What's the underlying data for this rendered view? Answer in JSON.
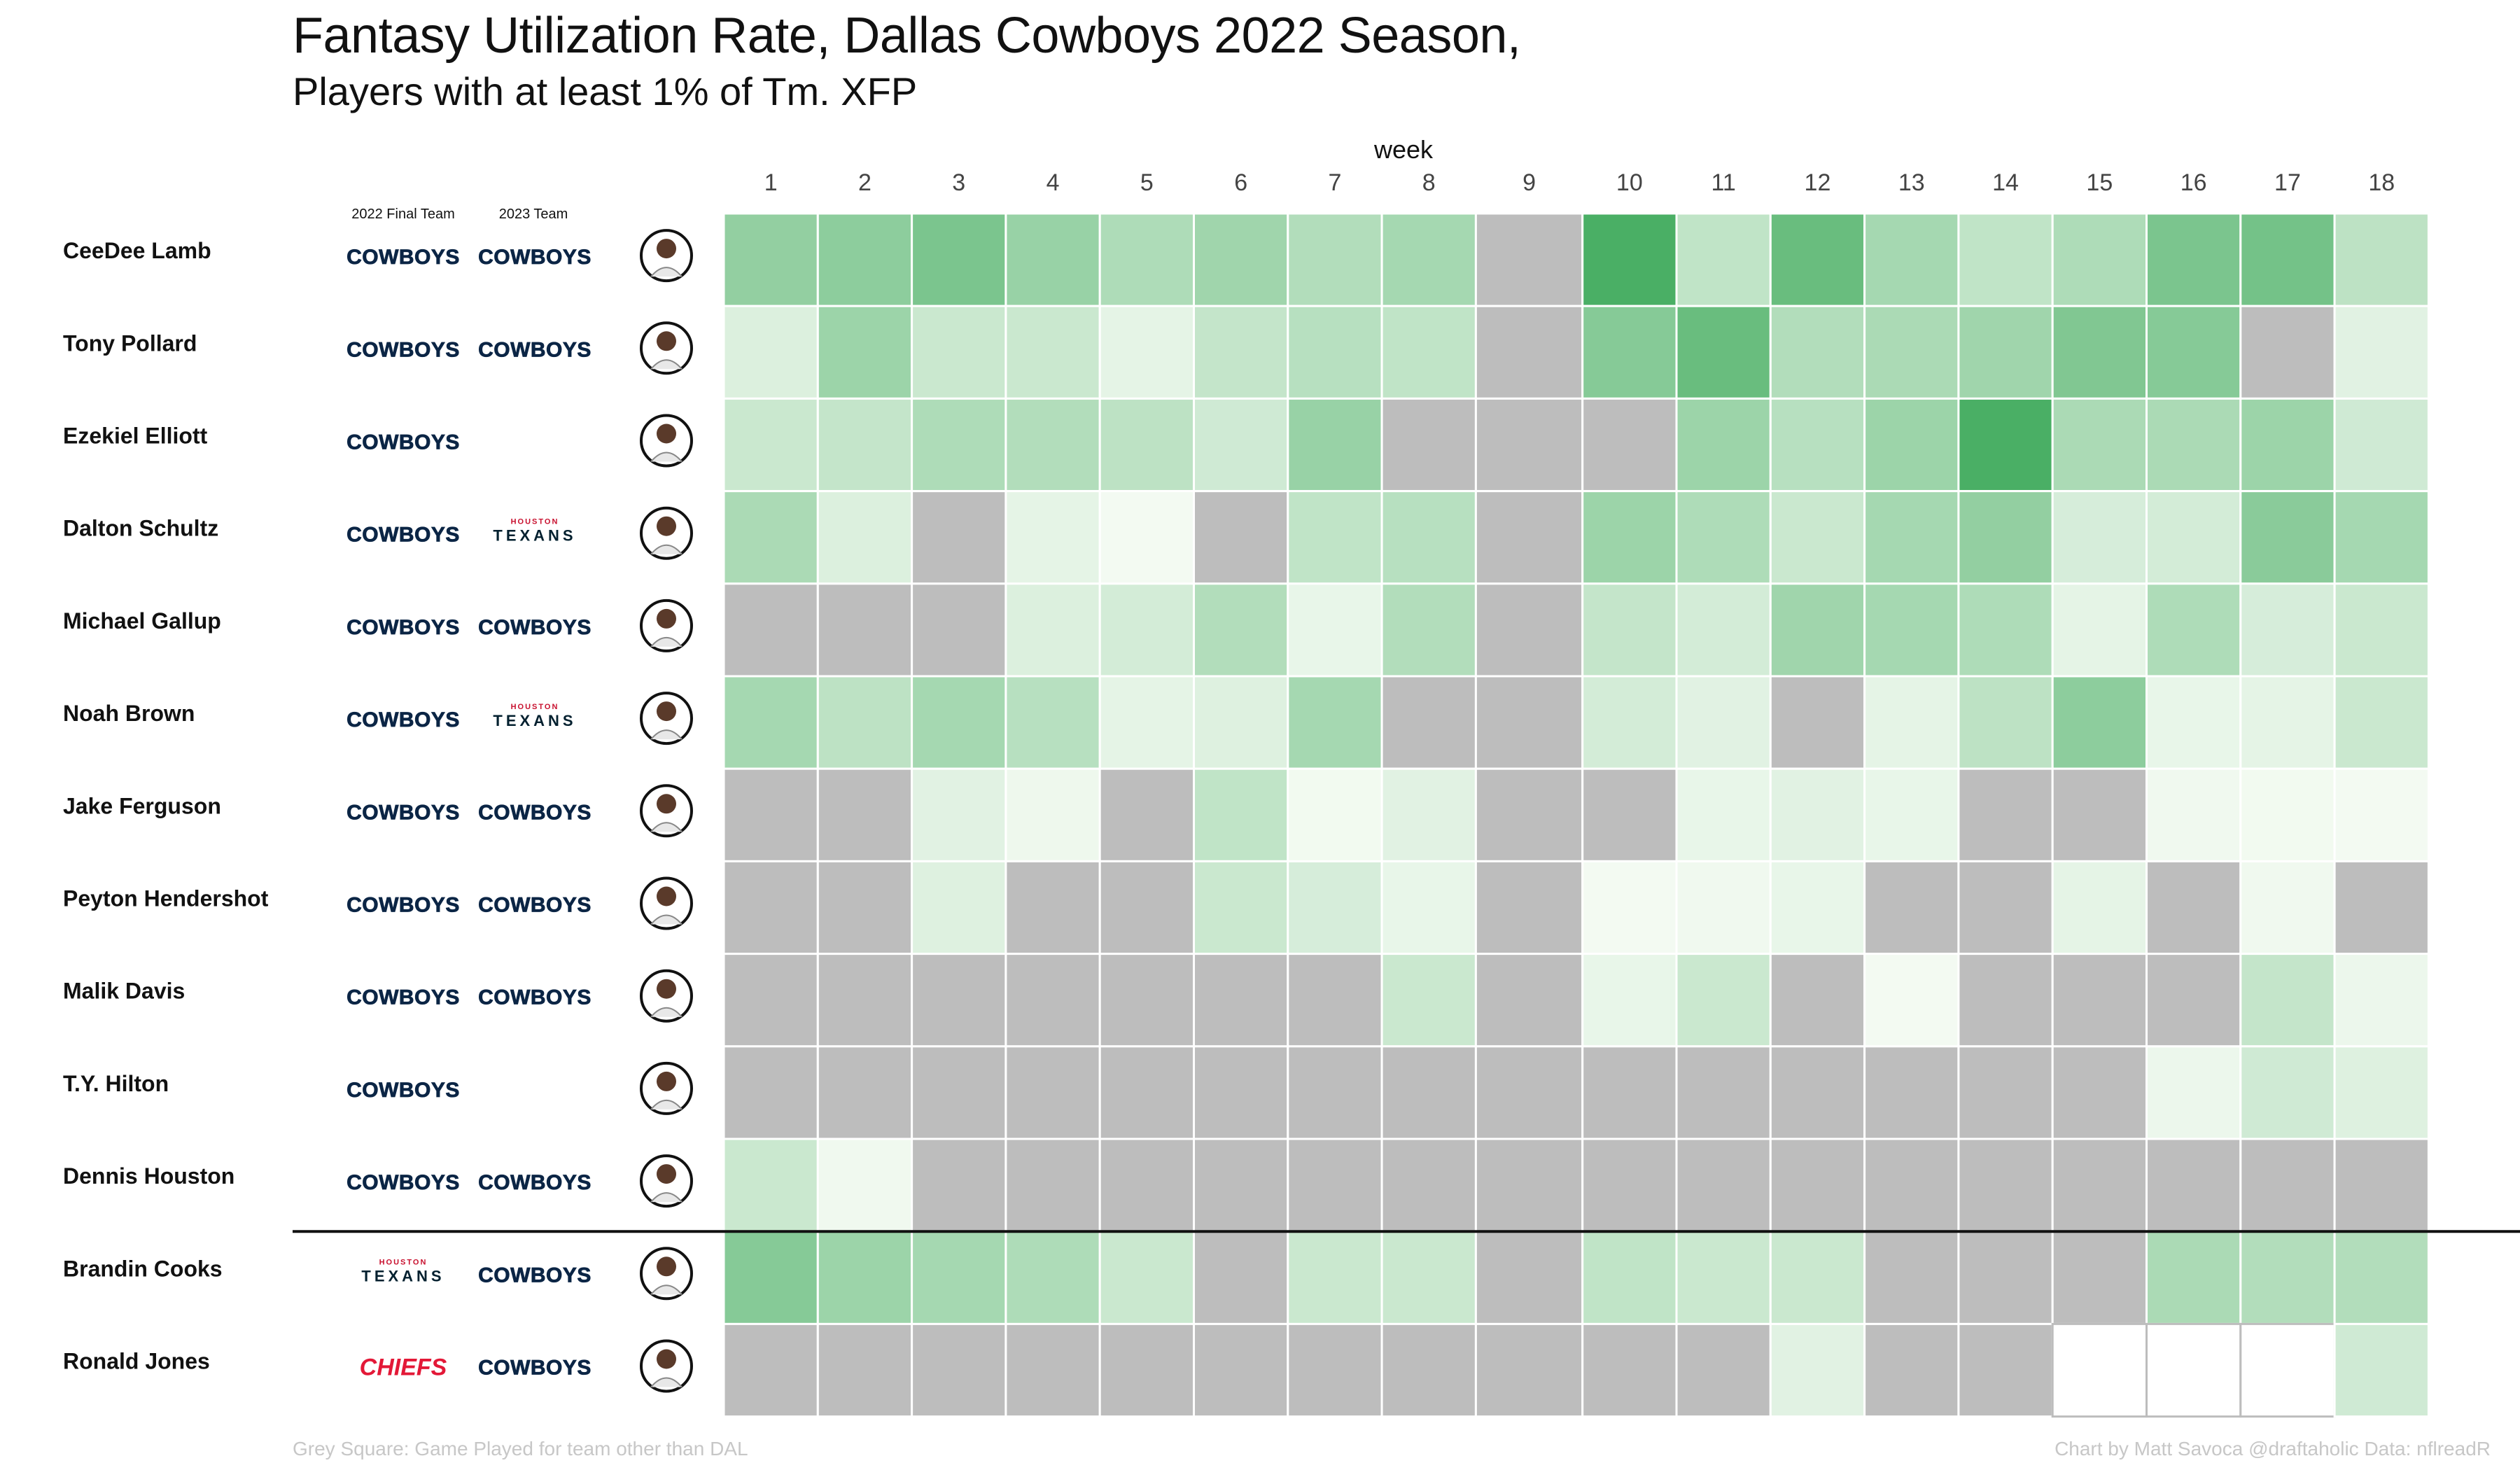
{
  "title": "Fantasy Utilization Rate, Dallas Cowboys 2022 Season,",
  "subtitle": "Players with at least 1% of Tm. XFP",
  "columns": {
    "final_team": "2022 Final Team",
    "team_2023": "2023 Team"
  },
  "footer": {
    "note": "Grey Square: Game Played for team other than DAL",
    "credit": "Chart by Matt Savoca    @draftaholic    Data: nflreadR"
  },
  "colors": {
    "other_team": "#bdbdbd",
    "low": "#f7fcf5",
    "high": "#41ab5d",
    "grid_line": "#ffffff",
    "divider": "#111111"
  },
  "teams": {
    "COWBOYS": {
      "label": "COWBOYS",
      "color": "#0b2545"
    },
    "TEXANS": {
      "label": "TEXANS",
      "sublabel": "HOUSTON",
      "color": "#03202f",
      "accent": "#c8102e"
    },
    "CHIEFS": {
      "label": "CHIEFS",
      "color": "#e31837"
    }
  },
  "chart_data": {
    "type": "heatmap",
    "x_label": "week",
    "x": [
      1,
      2,
      3,
      4,
      5,
      6,
      7,
      8,
      9,
      10,
      11,
      12,
      13,
      14,
      15,
      16,
      17,
      18
    ],
    "value_scale": [
      0,
      1
    ],
    "legend_note": "null = grey square (game played for team other than DAL); -1 = no game (white)",
    "divider_after_row": 11,
    "rows": [
      {
        "name": "CeeDee Lamb",
        "team_2022": "COWBOYS",
        "team_2023": "COWBOYS",
        "values": [
          0.55,
          0.58,
          0.68,
          0.52,
          0.4,
          0.48,
          0.38,
          0.45,
          null,
          0.95,
          0.3,
          0.78,
          0.45,
          0.3,
          0.4,
          0.68,
          0.72,
          0.32
        ]
      },
      {
        "name": "Tony Pollard",
        "team_2022": "COWBOYS",
        "team_2023": "COWBOYS",
        "values": [
          0.15,
          0.5,
          0.25,
          0.25,
          0.1,
          0.28,
          0.35,
          0.3,
          null,
          0.62,
          0.78,
          0.38,
          0.42,
          0.48,
          0.65,
          0.62,
          null,
          0.12
        ]
      },
      {
        "name": "Ezekiel Elliott",
        "team_2022": "COWBOYS",
        "team_2023": "",
        "values": [
          0.25,
          0.28,
          0.4,
          0.38,
          0.32,
          0.22,
          0.52,
          null,
          null,
          null,
          0.5,
          0.35,
          0.5,
          0.95,
          0.42,
          0.42,
          0.5,
          0.22
        ]
      },
      {
        "name": "Dalton Schultz",
        "team_2022": "COWBOYS",
        "team_2023": "TEXANS",
        "values": [
          0.42,
          0.15,
          null,
          0.1,
          0.02,
          null,
          0.3,
          0.35,
          null,
          0.5,
          0.4,
          0.25,
          0.45,
          0.55,
          0.18,
          0.2,
          0.6,
          0.45
        ]
      },
      {
        "name": "Michael Gallup",
        "team_2022": "COWBOYS",
        "team_2023": "COWBOYS",
        "values": [
          null,
          null,
          null,
          0.15,
          0.2,
          0.38,
          0.08,
          0.38,
          null,
          0.28,
          0.2,
          0.48,
          0.45,
          0.4,
          0.1,
          0.4,
          0.18,
          0.25
        ]
      },
      {
        "name": "Noah Brown",
        "team_2022": "COWBOYS",
        "team_2023": "TEXANS",
        "values": [
          0.45,
          0.32,
          0.45,
          0.35,
          0.1,
          0.14,
          0.45,
          null,
          null,
          0.2,
          0.12,
          null,
          0.1,
          0.32,
          0.58,
          0.08,
          0.1,
          0.25
        ]
      },
      {
        "name": "Jake Ferguson",
        "team_2022": "COWBOYS",
        "team_2023": "COWBOYS",
        "values": [
          null,
          null,
          0.12,
          0.05,
          null,
          0.3,
          0.03,
          0.12,
          null,
          null,
          0.08,
          0.12,
          0.08,
          null,
          null,
          0.04,
          0.03,
          0.02
        ]
      },
      {
        "name": "Peyton Hendershot",
        "team_2022": "COWBOYS",
        "team_2023": "COWBOYS",
        "values": [
          null,
          null,
          0.14,
          null,
          null,
          0.25,
          0.18,
          0.08,
          null,
          0.02,
          0.04,
          0.08,
          null,
          null,
          0.1,
          null,
          0.04,
          null
        ]
      },
      {
        "name": "Malik Davis",
        "team_2022": "COWBOYS",
        "team_2023": "COWBOYS",
        "values": [
          null,
          null,
          null,
          null,
          null,
          null,
          null,
          0.25,
          null,
          0.08,
          0.25,
          null,
          0.02,
          null,
          null,
          null,
          0.28,
          0.06
        ]
      },
      {
        "name": "T.Y. Hilton",
        "team_2022": "COWBOYS",
        "team_2023": "",
        "values": [
          null,
          null,
          null,
          null,
          null,
          null,
          null,
          null,
          null,
          null,
          null,
          null,
          null,
          null,
          null,
          0.06,
          0.22,
          0.14
        ]
      },
      {
        "name": "Dennis Houston",
        "team_2022": "COWBOYS",
        "team_2023": "COWBOYS",
        "values": [
          0.25,
          0.04,
          null,
          null,
          null,
          null,
          null,
          null,
          null,
          null,
          null,
          null,
          null,
          null,
          null,
          null,
          null,
          null
        ]
      },
      {
        "name": "Brandin Cooks",
        "team_2022": "TEXANS",
        "team_2023": "COWBOYS",
        "values": [
          0.62,
          0.5,
          0.45,
          0.4,
          0.25,
          null,
          0.25,
          0.25,
          null,
          0.3,
          0.25,
          0.25,
          null,
          null,
          null,
          0.42,
          0.38,
          0.38
        ]
      },
      {
        "name": "Ronald Jones",
        "team_2022": "CHIEFS",
        "team_2023": "COWBOYS",
        "values": [
          null,
          null,
          null,
          null,
          null,
          null,
          null,
          null,
          null,
          null,
          null,
          0.12,
          null,
          null,
          -1,
          -1,
          -1,
          0.22
        ]
      }
    ]
  }
}
